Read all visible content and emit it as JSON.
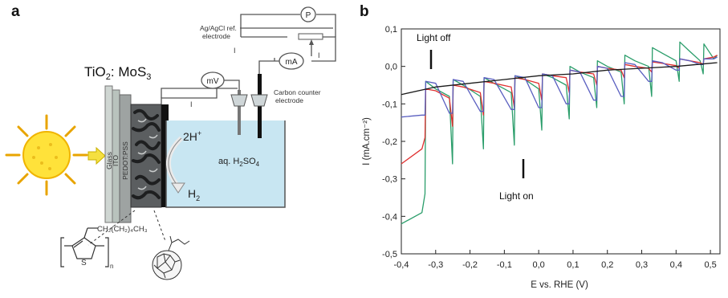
{
  "panel_a": {
    "label": "a",
    "compound_label": "TiO",
    "compound_sub1": "2",
    "compound_mid": ": MoS",
    "compound_sub2": "3",
    "ref_electrode_line1": "Ag/AgCl ref.",
    "ref_electrode_line2": "electrode",
    "counter_electrode_line1": "Carbon counter",
    "counter_electrode_line2": "electrode",
    "meter_mv": "mV",
    "meter_ma": "mA",
    "meter_p": "P",
    "current_label": "I",
    "electrolyte_main": "aq. H",
    "electrolyte_sub": "2",
    "electrolyte_end": "SO",
    "electrolyte_sub2": "4",
    "proton": "2H",
    "proton_sup": "+",
    "hydrogen": "H",
    "hydrogen_sub": "2",
    "layer_pedot": "PEDOT:PSS",
    "layer_ito": "ITO",
    "layer_glass": "Glass",
    "polymer_chain": "CH₂(CH₂)₄CH₃",
    "polymer_subscript_n": "n",
    "thiophene_atom": "S"
  },
  "panel_b": {
    "label": "b",
    "annotation_off": "Light off",
    "annotation_on": "Light on"
  },
  "chart_data": {
    "type": "line",
    "title": "",
    "xlabel": "E vs. RHE (V)",
    "ylabel": "I (mA.cm⁻²)",
    "xlim": [
      -0.4,
      0.5
    ],
    "ylim": [
      -0.5,
      0.1
    ],
    "xticks": [
      -0.4,
      -0.3,
      -0.2,
      -0.1,
      0.0,
      0.1,
      0.2,
      0.3,
      0.4,
      0.5
    ],
    "yticks": [
      0.1,
      0.0,
      -0.1,
      -0.2,
      -0.3,
      -0.4,
      -0.5
    ],
    "xtick_labels": [
      "-0,4",
      "-0,3",
      "-0,2",
      "-0,1",
      "0,0",
      "0,1",
      "0,2",
      "0,3",
      "0,4",
      "0,5"
    ],
    "ytick_labels": [
      "0,1",
      "0,0",
      "-0,1",
      "-0,2",
      "-0,3",
      "-0,4",
      "-0,5"
    ],
    "grid": false,
    "legend": "none",
    "chopped_illumination": true,
    "series": [
      {
        "color": "#2a9d6a",
        "x": [
          -0.4,
          -0.34,
          -0.331,
          -0.329,
          -0.3,
          -0.26,
          -0.251,
          -0.249,
          -0.22,
          -0.17,
          -0.161,
          -0.159,
          -0.13,
          -0.08,
          -0.071,
          -0.069,
          -0.04,
          0.0,
          0.009,
          0.011,
          0.04,
          0.08,
          0.089,
          0.091,
          0.12,
          0.16,
          0.169,
          0.171,
          0.2,
          0.24,
          0.249,
          0.251,
          0.28,
          0.32,
          0.329,
          0.331,
          0.36,
          0.4,
          0.409,
          0.411,
          0.44,
          0.47,
          0.479,
          0.481,
          0.51,
          0.52
        ],
        "y": [
          -0.42,
          -0.39,
          -0.34,
          -0.04,
          -0.06,
          -0.08,
          -0.26,
          -0.035,
          -0.05,
          -0.08,
          -0.22,
          -0.03,
          -0.045,
          -0.07,
          -0.21,
          -0.025,
          -0.035,
          -0.06,
          -0.17,
          -0.02,
          -0.03,
          -0.05,
          -0.14,
          0.0,
          -0.015,
          -0.03,
          -0.11,
          0.015,
          0.0,
          -0.015,
          -0.1,
          0.03,
          0.015,
          0.0,
          -0.08,
          0.05,
          0.035,
          0.015,
          -0.04,
          0.065,
          0.04,
          0.015,
          -0.02,
          0.06,
          0.02,
          0.03
        ]
      },
      {
        "color": "#e03030",
        "x": [
          -0.4,
          -0.34,
          -0.331,
          -0.329,
          -0.3,
          -0.26,
          -0.251,
          -0.249,
          -0.22,
          -0.17,
          -0.161,
          -0.159,
          -0.13,
          -0.08,
          -0.071,
          -0.069,
          -0.04,
          0.0,
          0.009,
          0.011,
          0.04,
          0.08,
          0.089,
          0.091,
          0.12,
          0.16,
          0.169,
          0.171,
          0.2,
          0.24,
          0.249,
          0.251,
          0.28,
          0.32,
          0.329,
          0.331,
          0.36,
          0.4,
          0.409,
          0.411,
          0.44,
          0.47,
          0.479,
          0.481,
          0.51,
          0.52
        ],
        "y": [
          -0.26,
          -0.22,
          -0.19,
          -0.06,
          -0.065,
          -0.085,
          -0.16,
          -0.05,
          -0.055,
          -0.07,
          -0.13,
          -0.04,
          -0.045,
          -0.055,
          -0.11,
          -0.03,
          -0.035,
          -0.045,
          -0.09,
          -0.02,
          -0.025,
          -0.03,
          -0.07,
          -0.01,
          -0.015,
          -0.02,
          -0.05,
          0.0,
          -0.005,
          -0.01,
          -0.03,
          0.005,
          0.0,
          -0.005,
          -0.015,
          0.012,
          0.008,
          0.002,
          -0.005,
          0.02,
          0.015,
          0.01,
          0.005,
          0.02,
          0.025,
          0.03
        ]
      },
      {
        "color": "#5a5fc0",
        "x": [
          -0.4,
          -0.34,
          -0.331,
          -0.329,
          -0.3,
          -0.26,
          -0.251,
          -0.249,
          -0.22,
          -0.17,
          -0.161,
          -0.159,
          -0.13,
          -0.08,
          -0.071,
          -0.069,
          -0.04,
          0.0,
          0.009,
          0.011,
          0.04,
          0.08,
          0.089,
          0.091,
          0.12,
          0.16,
          0.169,
          0.171,
          0.2,
          0.24,
          0.249,
          0.251,
          0.28,
          0.32,
          0.329,
          0.331,
          0.36,
          0.4,
          0.409,
          0.411,
          0.44,
          0.47,
          0.479,
          0.481,
          0.51,
          0.52
        ],
        "y": [
          -0.135,
          -0.13,
          -0.13,
          -0.04,
          -0.045,
          -0.125,
          -0.125,
          -0.035,
          -0.04,
          -0.12,
          -0.12,
          -0.03,
          -0.035,
          -0.115,
          -0.115,
          -0.025,
          -0.03,
          -0.11,
          -0.11,
          -0.02,
          -0.025,
          -0.1,
          -0.1,
          -0.01,
          -0.015,
          -0.09,
          -0.09,
          0.0,
          -0.005,
          -0.08,
          -0.08,
          0.01,
          0.005,
          -0.04,
          -0.04,
          0.015,
          0.01,
          -0.01,
          -0.01,
          0.02,
          0.015,
          0.005,
          0.005,
          0.02,
          0.02,
          0.025
        ]
      },
      {
        "color": "#1a1a1a",
        "x": [
          -0.4,
          -0.3,
          -0.2,
          -0.1,
          0.0,
          0.1,
          0.2,
          0.3,
          0.4,
          0.52
        ],
        "y": [
          -0.075,
          -0.055,
          -0.045,
          -0.035,
          -0.025,
          -0.02,
          -0.01,
          -0.005,
          0.0,
          0.01
        ]
      }
    ]
  }
}
